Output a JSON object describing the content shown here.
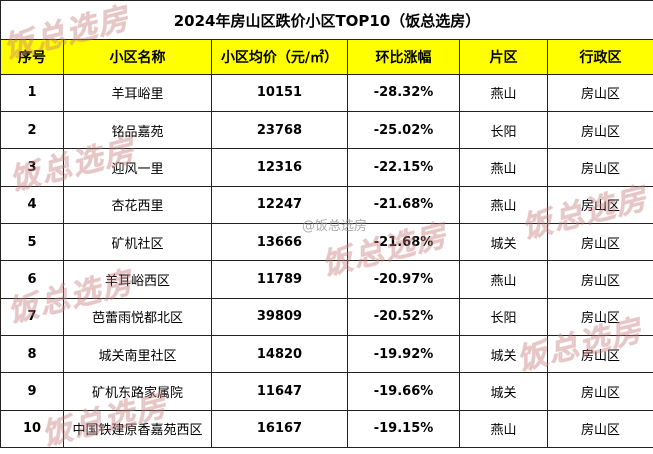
{
  "title": "2024年房山区跌价小区TOP10（饭总选房）",
  "columns": [
    "序号",
    "小区名称",
    "小区均价（元/㎡）",
    "环比涨幅",
    "片区",
    "行政区"
  ],
  "rows": [
    [
      "1",
      "羊耳峪里",
      "10151",
      "-28.32%",
      "燕山",
      "房山区"
    ],
    [
      "2",
      "铭品嘉苑",
      "23768",
      "-25.02%",
      "长阳",
      "房山区"
    ],
    [
      "3",
      "迎风一里",
      "12316",
      "-22.15%",
      "燕山",
      "房山区"
    ],
    [
      "4",
      "杏花西里",
      "12247",
      "-21.68%",
      "燕山",
      "房山区"
    ],
    [
      "5",
      "矿机社区",
      "13666",
      "-21.68%",
      "城关",
      "房山区"
    ],
    [
      "6",
      "羊耳峪西区",
      "11789",
      "-20.97%",
      "燕山",
      "房山区"
    ],
    [
      "7",
      "芭蕾雨悦都北区",
      "39809",
      "-20.52%",
      "长阳",
      "房山区"
    ],
    [
      "8",
      "城关南里社区",
      "14820",
      "-19.92%",
      "城关",
      "房山区"
    ],
    [
      "9",
      "矿机东路家属院",
      "11647",
      "-19.66%",
      "城关",
      "房山区"
    ],
    [
      "10",
      "中国铁建原香嘉苑西区",
      "16167",
      "-19.15%",
      "燕山",
      "房山区"
    ]
  ],
  "watermark": {
    "text": "饭总选房",
    "handle": "@饭总选房"
  },
  "colors": {
    "header_bg": "#ffff00",
    "border": "#222222",
    "watermark": "#cd8787"
  }
}
